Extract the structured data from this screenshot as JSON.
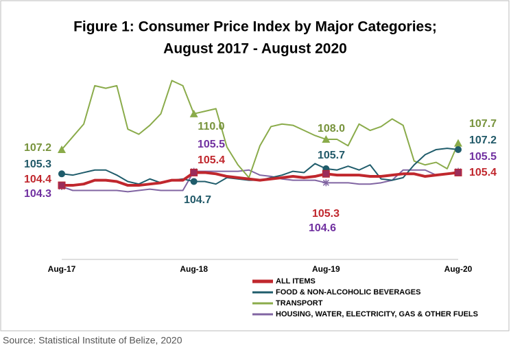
{
  "chart_data": {
    "type": "line",
    "title": [
      "Figure 1: Consumer Price Index by Major Categories;",
      "August 2017 - August 2020"
    ],
    "categories": [
      "Aug-17",
      null,
      null,
      null,
      null,
      null,
      null,
      null,
      null,
      null,
      null,
      null,
      "Aug-18",
      null,
      null,
      null,
      null,
      null,
      null,
      null,
      null,
      null,
      null,
      null,
      "Aug-19",
      null,
      null,
      null,
      null,
      null,
      null,
      null,
      null,
      null,
      null,
      null,
      "Aug-20"
    ],
    "ylim": [
      98.6,
      113
    ],
    "series": [
      {
        "name": "ALL ITEMS",
        "color": "#c0272d",
        "marker": "square",
        "width": 4,
        "values": [
          104.4,
          104.4,
          104.5,
          104.8,
          104.8,
          104.7,
          104.4,
          104.4,
          104.5,
          104.6,
          104.8,
          104.8,
          105.4,
          105.4,
          105.3,
          105.1,
          105.0,
          104.9,
          104.8,
          104.9,
          105.0,
          105.1,
          105.0,
          105.1,
          105.3,
          105.2,
          105.2,
          105.2,
          105.1,
          105.1,
          105.2,
          105.3,
          105.3,
          105.1,
          105.2,
          105.3,
          105.4
        ],
        "value_labels": [
          "104.4",
          null,
          null,
          null,
          null,
          null,
          null,
          null,
          null,
          null,
          null,
          null,
          "105.4",
          null,
          null,
          null,
          null,
          null,
          null,
          null,
          null,
          null,
          null,
          null,
          "105.3",
          null,
          null,
          null,
          null,
          null,
          null,
          null,
          null,
          null,
          null,
          null,
          "105.4"
        ]
      },
      {
        "name": "FOOD & NON-ALCOHOLIC BEVERAGES",
        "color": "#1f5c6b",
        "marker": "circle",
        "width": 2,
        "values": [
          105.3,
          105.2,
          105.4,
          105.6,
          105.6,
          105.2,
          104.7,
          104.5,
          104.9,
          104.6,
          104.8,
          104.9,
          104.7,
          104.7,
          104.5,
          105.0,
          104.9,
          104.8,
          104.8,
          105.0,
          105.2,
          105.5,
          105.4,
          106.1,
          105.7,
          105.6,
          105.9,
          105.6,
          106.0,
          104.9,
          104.8,
          105.0,
          106.0,
          106.8,
          107.2,
          107.3,
          107.2
        ],
        "value_labels": [
          "105.3",
          null,
          null,
          null,
          null,
          null,
          null,
          null,
          null,
          null,
          null,
          null,
          "104.7",
          null,
          null,
          null,
          null,
          null,
          null,
          null,
          null,
          null,
          null,
          null,
          "105.7",
          null,
          null,
          null,
          null,
          null,
          null,
          null,
          null,
          null,
          null,
          null,
          "107.2"
        ]
      },
      {
        "name": "TRANSPORT",
        "color": "#8aab4a",
        "marker": "triangle",
        "width": 2,
        "values": [
          107.2,
          108.2,
          109.2,
          112.2,
          112.0,
          112.2,
          108.8,
          108.4,
          109.1,
          110.0,
          112.6,
          112.2,
          110.0,
          110.2,
          110.4,
          107.4,
          106.0,
          105.0,
          107.5,
          109.0,
          109.2,
          109.1,
          108.7,
          108.3,
          108.0,
          108.0,
          107.5,
          109.2,
          108.7,
          109.0,
          109.6,
          109.1,
          106.3,
          106.0,
          106.2,
          105.7,
          107.7
        ],
        "value_labels": [
          "107.2",
          null,
          null,
          null,
          null,
          null,
          null,
          null,
          null,
          null,
          null,
          null,
          "110.0",
          null,
          null,
          null,
          null,
          null,
          null,
          null,
          null,
          null,
          null,
          null,
          "108.0",
          null,
          null,
          null,
          null,
          null,
          null,
          null,
          null,
          null,
          null,
          null,
          "107.7"
        ]
      },
      {
        "name": "HOUSING, WATER, ELECTRICITY, GAS & OTHER FUELS",
        "color": "#8064a2",
        "marker": "star",
        "width": 2,
        "values": [
          104.3,
          104.0,
          104.0,
          104.0,
          104.0,
          104.0,
          103.9,
          104.0,
          104.1,
          104.0,
          104.0,
          104.0,
          105.5,
          105.5,
          105.5,
          105.5,
          105.5,
          105.6,
          105.2,
          105.1,
          104.9,
          104.8,
          104.8,
          104.8,
          104.6,
          104.6,
          104.6,
          104.5,
          104.5,
          104.6,
          104.8,
          105.6,
          105.6,
          105.6,
          105.2,
          105.3,
          105.5
        ],
        "value_labels": [
          "104.3",
          null,
          null,
          null,
          null,
          null,
          null,
          null,
          null,
          null,
          null,
          null,
          "105.5",
          null,
          null,
          null,
          null,
          null,
          null,
          null,
          null,
          null,
          null,
          null,
          "104.6",
          null,
          null,
          null,
          null,
          null,
          null,
          null,
          null,
          null,
          null,
          null,
          "105.5"
        ]
      }
    ],
    "source": "Source: Statistical Institute of Belize, 2020"
  }
}
